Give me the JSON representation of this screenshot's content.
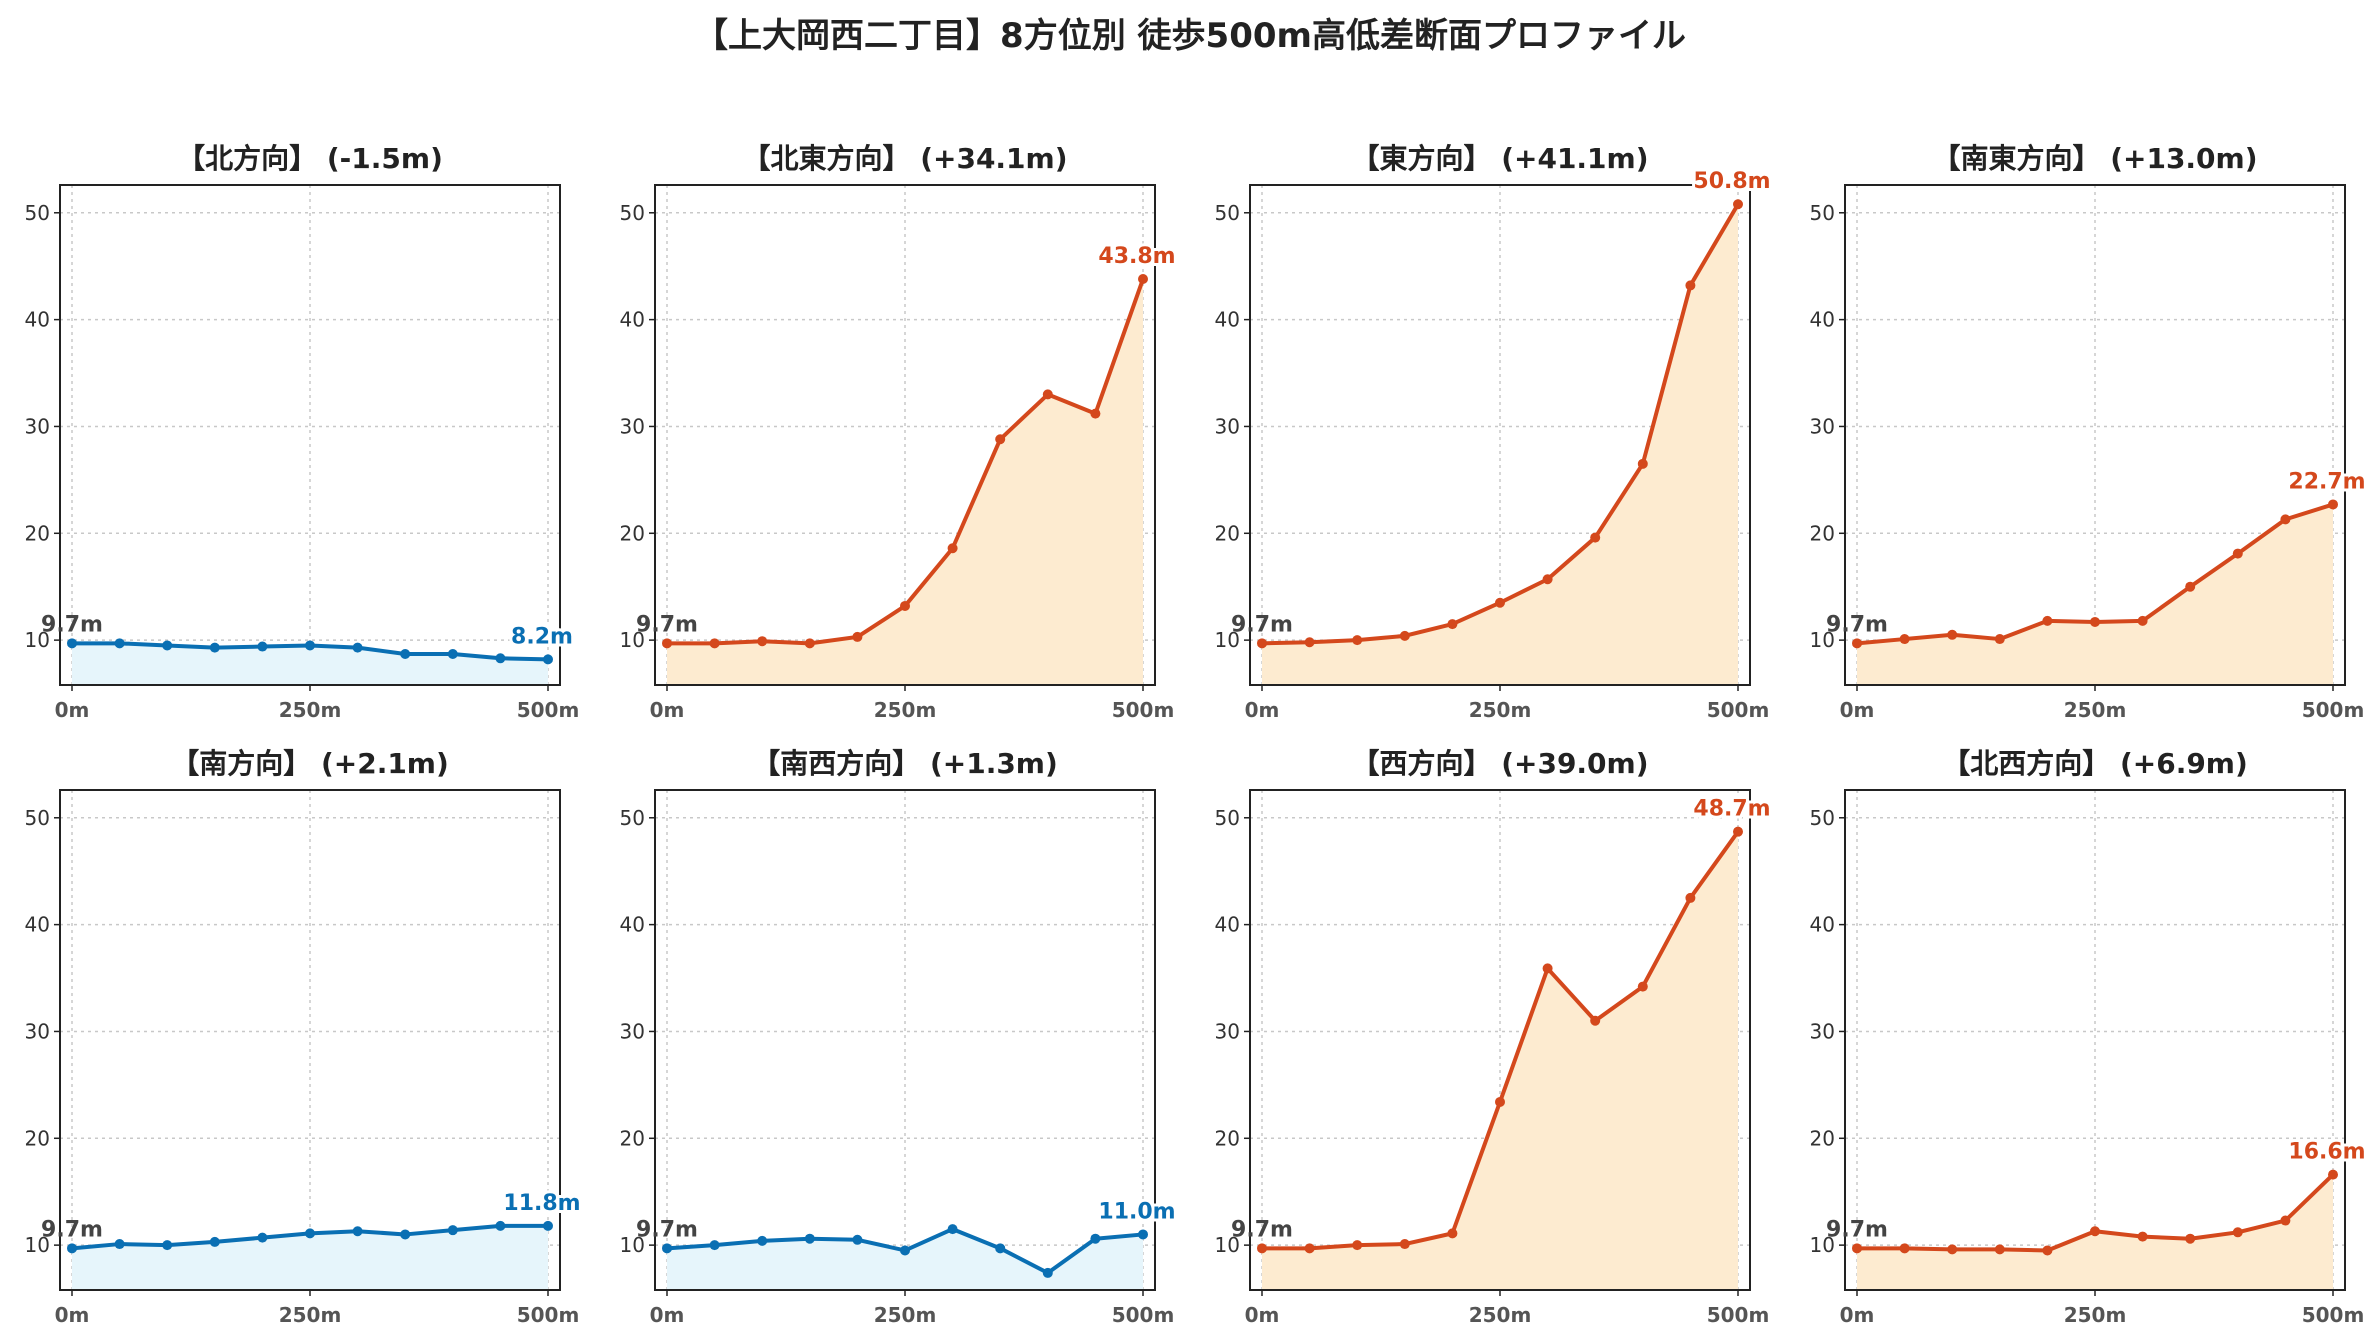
{
  "title": "【上大岡西二丁目】8方位別 徒歩500m高低差断面プロファイル",
  "colors": {
    "down_line": "#0a6fb3",
    "down_fill": "#e6f5fb",
    "up_line": "#d4481c",
    "up_fill": "#fdebd0",
    "grid": "#c8c8c8",
    "start_label": "#444444"
  },
  "chart_data": [
    {
      "type": "line",
      "title": "【北方向】 (-1.5m)",
      "trend": "down",
      "x": [
        0,
        50,
        100,
        150,
        200,
        250,
        300,
        350,
        400,
        450,
        500
      ],
      "y": [
        9.7,
        9.7,
        9.5,
        9.3,
        9.4,
        9.5,
        9.3,
        8.7,
        8.7,
        8.3,
        8.2
      ],
      "start_label": "9.7m",
      "end_label": "8.2m",
      "xticks": [
        "0m",
        "250m",
        "500m"
      ],
      "yticks": [
        10,
        20,
        30,
        40,
        50
      ],
      "xlim": [
        0,
        500
      ],
      "ylim": [
        5.8,
        52.6
      ],
      "grid": true
    },
    {
      "type": "line",
      "title": "【北東方向】 (+34.1m)",
      "trend": "up",
      "x": [
        0,
        50,
        100,
        150,
        200,
        250,
        300,
        350,
        400,
        450,
        500
      ],
      "y": [
        9.7,
        9.7,
        9.9,
        9.7,
        10.3,
        13.2,
        18.6,
        28.8,
        33.0,
        31.2,
        43.8
      ],
      "start_label": "9.7m",
      "end_label": "43.8m",
      "xticks": [
        "0m",
        "250m",
        "500m"
      ],
      "yticks": [
        10,
        20,
        30,
        40,
        50
      ],
      "xlim": [
        0,
        500
      ],
      "ylim": [
        5.8,
        52.6
      ],
      "grid": true
    },
    {
      "type": "line",
      "title": "【東方向】 (+41.1m)",
      "trend": "up",
      "x": [
        0,
        50,
        100,
        150,
        200,
        250,
        300,
        350,
        400,
        450,
        500
      ],
      "y": [
        9.7,
        9.8,
        10.0,
        10.4,
        11.5,
        13.5,
        15.7,
        19.6,
        26.5,
        43.2,
        50.8
      ],
      "start_label": "9.7m",
      "end_label": "50.8m",
      "xticks": [
        "0m",
        "250m",
        "500m"
      ],
      "yticks": [
        10,
        20,
        30,
        40,
        50
      ],
      "xlim": [
        0,
        500
      ],
      "ylim": [
        5.8,
        52.6
      ],
      "grid": true
    },
    {
      "type": "line",
      "title": "【南東方向】 (+13.0m)",
      "trend": "up",
      "x": [
        0,
        50,
        100,
        150,
        200,
        250,
        300,
        350,
        400,
        450,
        500
      ],
      "y": [
        9.7,
        10.1,
        10.5,
        10.1,
        11.8,
        11.7,
        11.8,
        15.0,
        18.1,
        21.3,
        22.7
      ],
      "start_label": "9.7m",
      "end_label": "22.7m",
      "xticks": [
        "0m",
        "250m",
        "500m"
      ],
      "yticks": [
        10,
        20,
        30,
        40,
        50
      ],
      "xlim": [
        0,
        500
      ],
      "ylim": [
        5.8,
        52.6
      ],
      "grid": true
    },
    {
      "type": "line",
      "title": "【南方向】 (+2.1m)",
      "trend": "down",
      "x": [
        0,
        50,
        100,
        150,
        200,
        250,
        300,
        350,
        400,
        450,
        500
      ],
      "y": [
        9.7,
        10.1,
        10.0,
        10.3,
        10.7,
        11.1,
        11.3,
        11.0,
        11.4,
        11.8,
        11.8
      ],
      "start_label": "9.7m",
      "end_label": "11.8m",
      "xticks": [
        "0m",
        "250m",
        "500m"
      ],
      "yticks": [
        10,
        20,
        30,
        40,
        50
      ],
      "xlim": [
        0,
        500
      ],
      "ylim": [
        5.8,
        52.6
      ],
      "grid": true
    },
    {
      "type": "line",
      "title": "【南西方向】 (+1.3m)",
      "trend": "down",
      "x": [
        0,
        50,
        100,
        150,
        200,
        250,
        300,
        350,
        400,
        450,
        500
      ],
      "y": [
        9.7,
        10.0,
        10.4,
        10.6,
        10.5,
        9.5,
        11.5,
        9.7,
        7.4,
        10.6,
        11.0
      ],
      "start_label": "9.7m",
      "end_label": "11.0m",
      "xticks": [
        "0m",
        "250m",
        "500m"
      ],
      "yticks": [
        10,
        20,
        30,
        40,
        50
      ],
      "xlim": [
        0,
        500
      ],
      "ylim": [
        5.8,
        52.6
      ],
      "grid": true
    },
    {
      "type": "line",
      "title": "【西方向】 (+39.0m)",
      "trend": "up",
      "x": [
        0,
        50,
        100,
        150,
        200,
        250,
        300,
        350,
        400,
        450,
        500
      ],
      "y": [
        9.7,
        9.7,
        10.0,
        10.1,
        11.1,
        23.4,
        35.9,
        31.0,
        34.2,
        42.5,
        48.7
      ],
      "start_label": "9.7m",
      "end_label": "48.7m",
      "xticks": [
        "0m",
        "250m",
        "500m"
      ],
      "yticks": [
        10,
        20,
        30,
        40,
        50
      ],
      "xlim": [
        0,
        500
      ],
      "ylim": [
        5.8,
        52.6
      ],
      "grid": true
    },
    {
      "type": "line",
      "title": "【北西方向】 (+6.9m)",
      "trend": "up",
      "x": [
        0,
        50,
        100,
        150,
        200,
        250,
        300,
        350,
        400,
        450,
        500
      ],
      "y": [
        9.7,
        9.7,
        9.6,
        9.6,
        9.5,
        11.3,
        10.8,
        10.6,
        11.2,
        12.3,
        16.6
      ],
      "start_label": "9.7m",
      "end_label": "16.6m",
      "xticks": [
        "0m",
        "250m",
        "500m"
      ],
      "yticks": [
        10,
        20,
        30,
        40,
        50
      ],
      "xlim": [
        0,
        500
      ],
      "ylim": [
        5.8,
        52.6
      ],
      "grid": true
    }
  ]
}
